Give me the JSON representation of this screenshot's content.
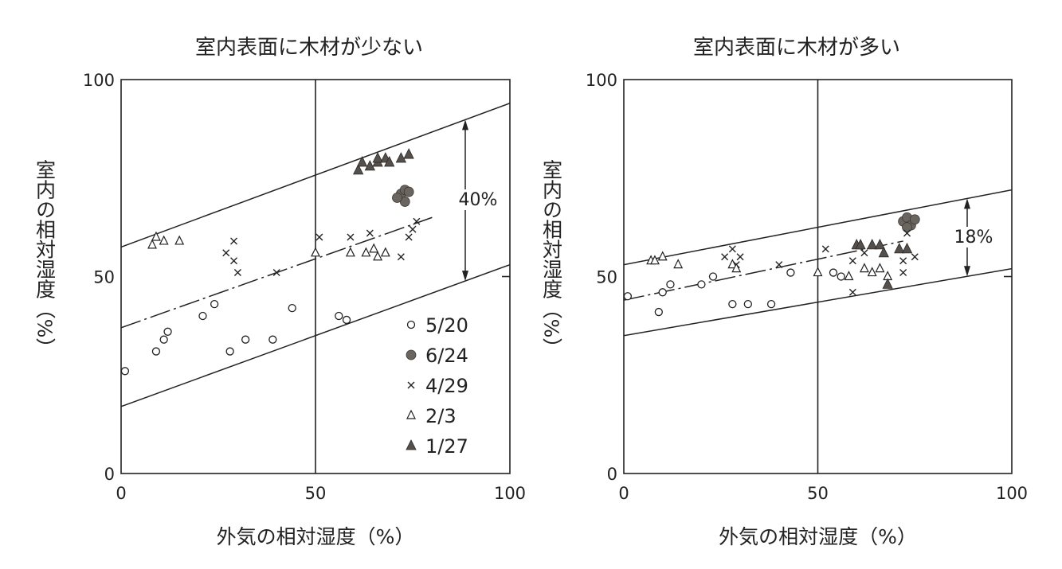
{
  "chart_data": [
    {
      "type": "scatter",
      "title": "室内表面に木材が少ない",
      "xlabel": "外気の相対湿度（%）",
      "ylabel": "室内の相対湿度（%）",
      "xlim": [
        0,
        100
      ],
      "ylim": [
        0,
        100
      ],
      "x_ticks": [
        "0",
        "50",
        "100"
      ],
      "y_ticks": [
        "0",
        "50",
        "100"
      ],
      "band": {
        "upper": [
          [
            0,
            57.5
          ],
          [
            100,
            94
          ]
        ],
        "center": [
          [
            0,
            37
          ],
          [
            80,
            65
          ]
        ],
        "lower": [
          [
            0,
            17
          ],
          [
            100,
            53
          ]
        ]
      },
      "annotation": "40%",
      "legend": {
        "placement": "lower-right",
        "entries": [
          {
            "label": "5/20",
            "marker": "circle-open"
          },
          {
            "label": "6/24",
            "marker": "circle-filled"
          },
          {
            "label": "4/29",
            "marker": "x"
          },
          {
            "label": "2/3",
            "marker": "triangle-open"
          },
          {
            "label": "1/27",
            "marker": "triangle-filled"
          }
        ]
      },
      "series": [
        {
          "legend": "5/20",
          "marker": "circle-open",
          "points": [
            [
              1,
              26
            ],
            [
              9,
              31
            ],
            [
              11,
              34
            ],
            [
              12,
              36
            ],
            [
              21,
              40
            ],
            [
              24,
              43
            ],
            [
              28,
              31
            ],
            [
              32,
              34
            ],
            [
              39,
              34
            ],
            [
              44,
              42
            ],
            [
              56,
              40
            ],
            [
              58,
              39
            ]
          ]
        },
        {
          "legend": "6/24",
          "marker": "circle-filled",
          "points": [
            [
              72,
              71
            ],
            [
              73,
              72
            ],
            [
              74,
              71.5
            ],
            [
              73,
              69
            ],
            [
              71,
              70
            ]
          ]
        },
        {
          "legend": "4/29",
          "marker": "x",
          "points": [
            [
              27,
              56
            ],
            [
              29,
              59
            ],
            [
              29,
              54
            ],
            [
              30,
              51
            ],
            [
              40,
              51
            ],
            [
              51,
              60
            ],
            [
              59,
              60
            ],
            [
              64,
              61
            ],
            [
              72,
              55
            ],
            [
              74,
              60
            ],
            [
              75,
              62
            ],
            [
              76,
              64
            ]
          ]
        },
        {
          "legend": "2/3",
          "marker": "triangle-open",
          "points": [
            [
              8,
              58
            ],
            [
              9,
              60
            ],
            [
              11,
              59
            ],
            [
              15,
              59
            ],
            [
              50,
              56
            ],
            [
              59,
              56
            ],
            [
              63,
              56
            ],
            [
              65,
              57
            ],
            [
              66,
              55
            ],
            [
              68,
              56
            ]
          ]
        },
        {
          "legend": "1/27",
          "marker": "triangle-filled",
          "points": [
            [
              61,
              77
            ],
            [
              62,
              79
            ],
            [
              64,
              78
            ],
            [
              66,
              79
            ],
            [
              66,
              80
            ],
            [
              68,
              80
            ],
            [
              69,
              79
            ],
            [
              72,
              80
            ],
            [
              74,
              81
            ]
          ]
        }
      ]
    },
    {
      "type": "scatter",
      "title": "室内表面に木材が多い",
      "xlabel": "外気の相対湿度（%）",
      "ylabel": "室内の相対湿度（%）",
      "xlim": [
        0,
        100
      ],
      "ylim": [
        0,
        100
      ],
      "x_ticks": [
        "0",
        "50",
        "100"
      ],
      "y_ticks": [
        "0",
        "50",
        "100"
      ],
      "band": {
        "upper": [
          [
            0,
            53
          ],
          [
            100,
            72
          ]
        ],
        "center": [
          [
            0,
            44
          ],
          [
            72,
            59
          ]
        ],
        "lower": [
          [
            0,
            35
          ],
          [
            100,
            52
          ]
        ]
      },
      "annotation": "18%",
      "series": [
        {
          "legend": "5/20",
          "marker": "circle-open",
          "points": [
            [
              1,
              45
            ],
            [
              9,
              41
            ],
            [
              10,
              46
            ],
            [
              12,
              48
            ],
            [
              20,
              48
            ],
            [
              23,
              50
            ],
            [
              28,
              43
            ],
            [
              32,
              43
            ],
            [
              38,
              43
            ],
            [
              43,
              51
            ],
            [
              54,
              51
            ],
            [
              56,
              50
            ]
          ]
        },
        {
          "legend": "6/24",
          "marker": "circle-filled",
          "points": [
            [
              72,
              64
            ],
            [
              73,
              65
            ],
            [
              74,
              63
            ],
            [
              75,
              64.5
            ],
            [
              73,
              62.5
            ]
          ]
        },
        {
          "legend": "4/29",
          "marker": "x",
          "points": [
            [
              26,
              55
            ],
            [
              28,
              57
            ],
            [
              29,
              53
            ],
            [
              30,
              55
            ],
            [
              40,
              53
            ],
            [
              52,
              57
            ],
            [
              59,
              54
            ],
            [
              62,
              56
            ],
            [
              59,
              46
            ],
            [
              72,
              51
            ],
            [
              72,
              54
            ],
            [
              73,
              61
            ],
            [
              75,
              55
            ]
          ]
        },
        {
          "legend": "2/3",
          "marker": "triangle-open",
          "points": [
            [
              7,
              54
            ],
            [
              8,
              54
            ],
            [
              10,
              55
            ],
            [
              14,
              53
            ],
            [
              28,
              53
            ],
            [
              29,
              52
            ],
            [
              50,
              51
            ],
            [
              58,
              50
            ],
            [
              62,
              52
            ],
            [
              64,
              51
            ],
            [
              66,
              52
            ],
            [
              68,
              50
            ]
          ]
        },
        {
          "legend": "1/27",
          "marker": "triangle-filled",
          "points": [
            [
              60,
              58
            ],
            [
              61,
              58
            ],
            [
              64,
              58
            ],
            [
              66,
              58
            ],
            [
              67,
              56
            ],
            [
              68,
              48
            ],
            [
              71,
              57
            ],
            [
              73,
              57
            ]
          ]
        }
      ]
    }
  ]
}
